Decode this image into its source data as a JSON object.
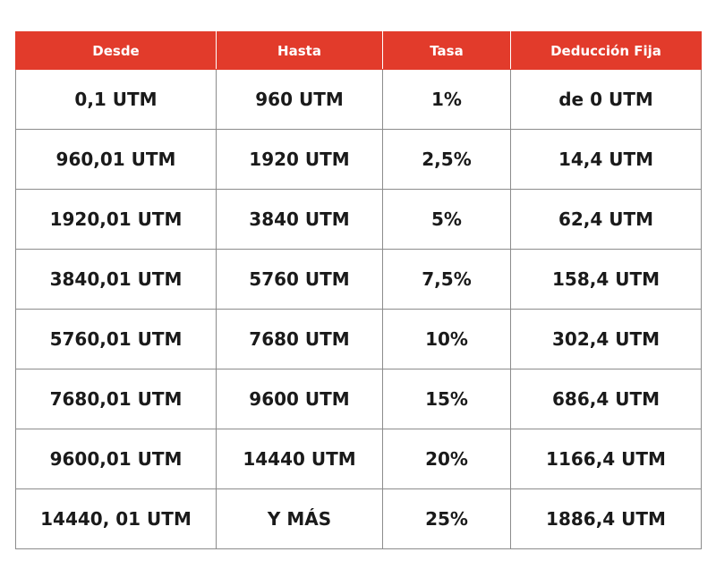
{
  "table": {
    "headers": [
      "Desde",
      "Hasta",
      "Tasa",
      "Deducción Fija"
    ],
    "rows": [
      [
        "0,1 UTM",
        "960 UTM",
        "1%",
        "de 0 UTM"
      ],
      [
        "960,01 UTM",
        "1920 UTM",
        "2,5%",
        "14,4 UTM"
      ],
      [
        "1920,01 UTM",
        "3840 UTM",
        "5%",
        "62,4 UTM"
      ],
      [
        "3840,01 UTM",
        "5760 UTM",
        "7,5%",
        "158,4 UTM"
      ],
      [
        "5760,01 UTM",
        "7680 UTM",
        "10%",
        "302,4 UTM"
      ],
      [
        "7680,01 UTM",
        "9600 UTM",
        "15%",
        "686,4 UTM"
      ],
      [
        "9600,01 UTM",
        "14440 UTM",
        "20%",
        "1166,4 UTM"
      ],
      [
        "14440, 01 UTM",
        "Y MÁS",
        "25%",
        "1886,4 UTM"
      ]
    ]
  },
  "colors": {
    "header_background": "#e23b2b",
    "header_text": "#ffffff",
    "cell_text": "#1a1a1a",
    "grid_lines": "#8c8c8c"
  }
}
